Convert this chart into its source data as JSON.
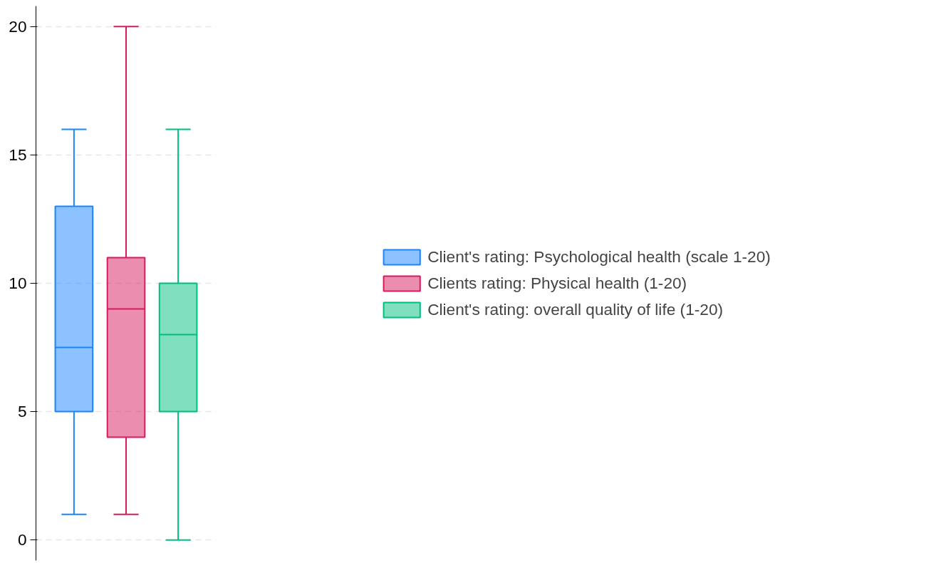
{
  "chart_data": {
    "type": "box",
    "categories": [
      null
    ],
    "series": [
      {
        "name": "Client's rating: Psychological health (scale 1-20)",
        "color": "#1a85ff",
        "boxes": [
          {
            "low": 1,
            "q1": 5,
            "median": 7.5,
            "q3": 13,
            "high": 16
          }
        ]
      },
      {
        "name": "Clients rating: Physical health (1-20)",
        "color": "#d81b60",
        "boxes": [
          {
            "low": 1,
            "q1": 4,
            "median": 9,
            "q3": 11,
            "high": 20
          }
        ]
      },
      {
        "name": "Client's rating: overall quality of life (1-20)",
        "color": "#00bf7d",
        "boxes": [
          {
            "low": 0,
            "q1": 5,
            "median": 8,
            "q3": 10,
            "high": 16
          }
        ]
      }
    ],
    "ylim": [
      -0.8,
      20.8
    ],
    "yticks": [
      0,
      5,
      10,
      15,
      20
    ],
    "grid": "y",
    "legend": "right",
    "tick_labels": "y"
  }
}
